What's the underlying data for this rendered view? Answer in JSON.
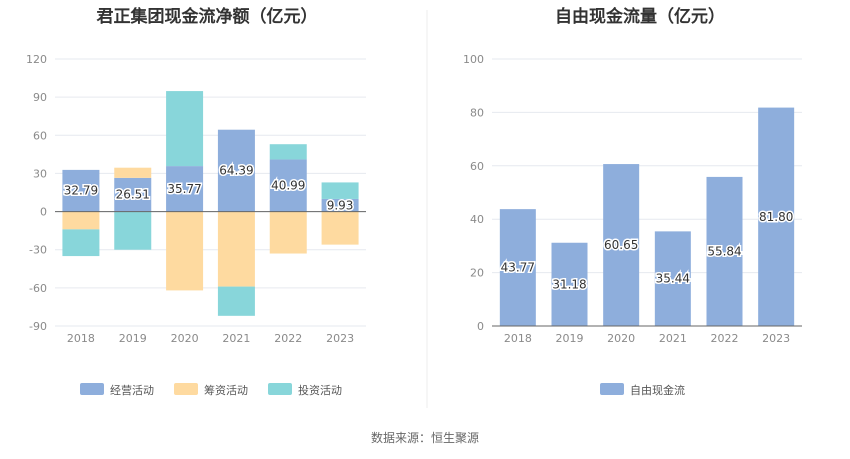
{
  "source_note": "数据来源：恒生聚源",
  "colors": {
    "operating": "#8eaedc",
    "financing": "#fedaa0",
    "investing": "#88d6da",
    "free_cash_flow": "#8eaedc",
    "grid": "#e6e9ef",
    "axis": "#666666",
    "divider": "#eeeeee"
  },
  "chart_data": [
    {
      "type": "bar",
      "stacked": true,
      "title": "君正集团现金流净额（亿元）",
      "categories": [
        "2018",
        "2019",
        "2020",
        "2021",
        "2022",
        "2023"
      ],
      "ylim": [
        -90,
        120
      ],
      "yticks": [
        120,
        90,
        60,
        30,
        0,
        -30,
        -60,
        -90
      ],
      "grid": true,
      "legend_position": "bottom",
      "series": [
        {
          "name": "经营活动",
          "values": [
            32.79,
            26.51,
            35.77,
            64.39,
            40.99,
            9.93
          ],
          "labels": [
            "32.79",
            "26.51",
            "35.77",
            "64.39",
            "40.99",
            "9.93"
          ]
        },
        {
          "name": "筹资活动",
          "values": [
            -14,
            8,
            -62,
            -59,
            -33,
            -26
          ]
        },
        {
          "name": "投资活动",
          "values": [
            -21,
            -30,
            59,
            -23,
            12,
            13
          ]
        }
      ]
    },
    {
      "type": "bar",
      "title": "自由现金流量（亿元）",
      "categories": [
        "2018",
        "2019",
        "2020",
        "2021",
        "2022",
        "2023"
      ],
      "ylim": [
        0,
        100
      ],
      "yticks": [
        100,
        80,
        60,
        40,
        20,
        0
      ],
      "grid": true,
      "legend_position": "bottom",
      "series": [
        {
          "name": "自由现金流",
          "values": [
            43.77,
            31.18,
            60.65,
            35.44,
            55.84,
            81.8
          ],
          "labels": [
            "43.77",
            "31.18",
            "60.65",
            "35.44",
            "55.84",
            "81.80"
          ]
        }
      ]
    }
  ]
}
